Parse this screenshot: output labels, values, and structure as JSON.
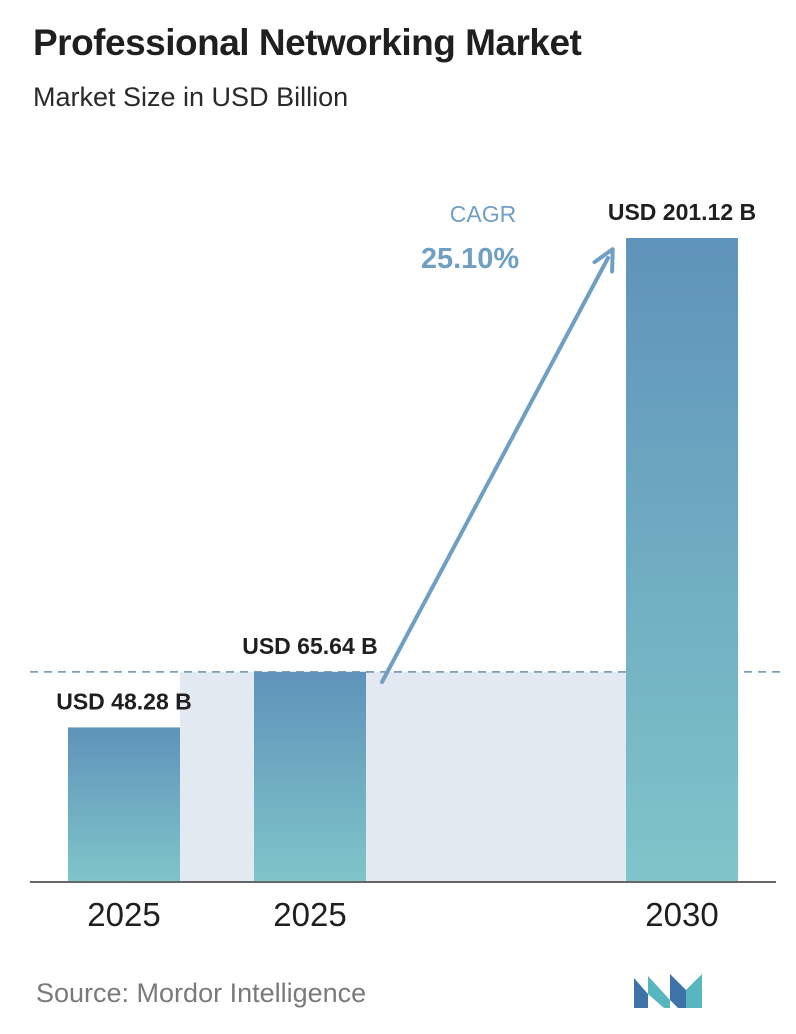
{
  "header": {
    "title": "Professional Networking Market",
    "subtitle": "Market Size in USD Billion"
  },
  "chart_data": {
    "type": "bar",
    "title": "Professional Networking Market",
    "subtitle": "Market Size in USD Billion",
    "categories": [
      "2025",
      "2025",
      "2030"
    ],
    "values": [
      48.28,
      65.64,
      201.12
    ],
    "value_labels": [
      "USD 48.28 B",
      "USD 65.64 B",
      "USD 201.12 B"
    ],
    "xlabel": "",
    "ylabel": "",
    "grid": false,
    "annotation": {
      "label": "CAGR",
      "value": "25.10%"
    }
  },
  "footer": {
    "source": "Source:  Mordor Intelligence",
    "logo": "mordor-intelligence-logo"
  },
  "colors": {
    "bar_top": "#5f93ba",
    "bar_bottom": "#7fc5c9",
    "shade": "#e3e9f0",
    "arrow": "#6f9fc3",
    "baseline": "#666666",
    "dashed_line": "#6b8fa8",
    "logo_left": "#3d73a8",
    "logo_right": "#58b6c0"
  }
}
